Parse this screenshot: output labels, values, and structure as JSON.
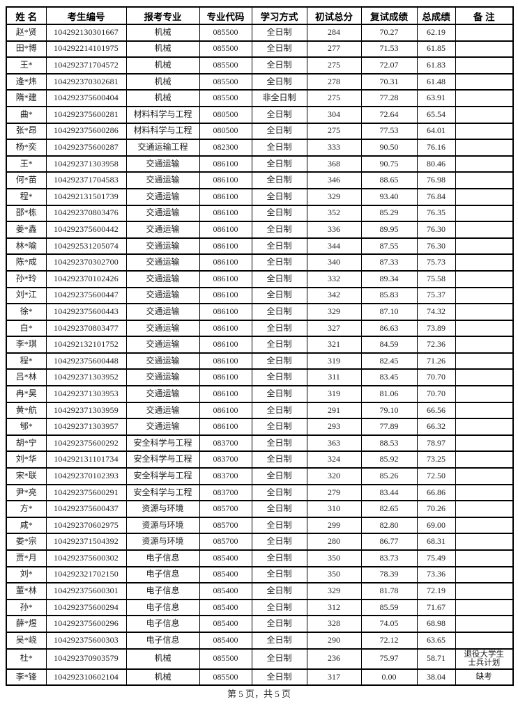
{
  "page": {
    "footer": "第 5 页，共 5 页"
  },
  "colors": {
    "border": "#000000",
    "text": "#1d1d1d",
    "background": "#ffffff"
  },
  "table": {
    "headers": [
      "姓 名",
      "考生编号",
      "报考专业",
      "专业代码",
      "学习方式",
      "初试总分",
      "复试成绩",
      "总成绩",
      "备 注"
    ],
    "column_keys": [
      "name",
      "candidate-id",
      "major",
      "major-code",
      "study-mode",
      "initial-score",
      "retest-score",
      "total-score",
      "remark"
    ],
    "rows": [
      [
        "赵*贤",
        "104292130301667",
        "机械",
        "085500",
        "全日制",
        "284",
        "70.27",
        "62.19",
        ""
      ],
      [
        "田*博",
        "104292214101975",
        "机械",
        "085500",
        "全日制",
        "277",
        "71.53",
        "61.85",
        ""
      ],
      [
        "王*",
        "104292371704572",
        "机械",
        "085500",
        "全日制",
        "275",
        "72.07",
        "61.83",
        ""
      ],
      [
        "逄*炜",
        "104292370302681",
        "机械",
        "085500",
        "全日制",
        "278",
        "70.31",
        "61.48",
        ""
      ],
      [
        "隋*建",
        "104292375600404",
        "机械",
        "085500",
        "非全日制",
        "275",
        "77.28",
        "63.91",
        ""
      ],
      [
        "曲*",
        "104292375600281",
        "材料科学与工程",
        "080500",
        "全日制",
        "304",
        "72.64",
        "65.54",
        ""
      ],
      [
        "张*昂",
        "104292375600286",
        "材料科学与工程",
        "080500",
        "全日制",
        "275",
        "77.53",
        "64.01",
        ""
      ],
      [
        "杨*奕",
        "104292375600287",
        "交通运输工程",
        "082300",
        "全日制",
        "333",
        "90.50",
        "76.16",
        ""
      ],
      [
        "王*",
        "104292371303958",
        "交通运输",
        "086100",
        "全日制",
        "368",
        "90.75",
        "80.46",
        ""
      ],
      [
        "何*苗",
        "104292371704583",
        "交通运输",
        "086100",
        "全日制",
        "346",
        "88.65",
        "76.98",
        ""
      ],
      [
        "程*",
        "104292131501739",
        "交通运输",
        "086100",
        "全日制",
        "329",
        "93.40",
        "76.84",
        ""
      ],
      [
        "邵*栋",
        "104292370803476",
        "交通运输",
        "086100",
        "全日制",
        "352",
        "85.29",
        "76.35",
        ""
      ],
      [
        "姜*鑫",
        "104292375600442",
        "交通运输",
        "086100",
        "全日制",
        "336",
        "89.95",
        "76.30",
        ""
      ],
      [
        "林*喻",
        "104292531205074",
        "交通运输",
        "086100",
        "全日制",
        "344",
        "87.55",
        "76.30",
        ""
      ],
      [
        "陈*成",
        "104292370302700",
        "交通运输",
        "086100",
        "全日制",
        "340",
        "87.33",
        "75.73",
        ""
      ],
      [
        "孙*玲",
        "104292370102426",
        "交通运输",
        "086100",
        "全日制",
        "332",
        "89.34",
        "75.58",
        ""
      ],
      [
        "刘*江",
        "104292375600447",
        "交通运输",
        "086100",
        "全日制",
        "342",
        "85.83",
        "75.37",
        ""
      ],
      [
        "徐*",
        "104292375600443",
        "交通运输",
        "086100",
        "全日制",
        "329",
        "87.10",
        "74.32",
        ""
      ],
      [
        "白*",
        "104292370803477",
        "交通运输",
        "086100",
        "全日制",
        "327",
        "86.63",
        "73.89",
        ""
      ],
      [
        "李*琪",
        "104292132101752",
        "交通运输",
        "086100",
        "全日制",
        "321",
        "84.59",
        "72.36",
        ""
      ],
      [
        "程*",
        "104292375600448",
        "交通运输",
        "086100",
        "全日制",
        "319",
        "82.45",
        "71.26",
        ""
      ],
      [
        "吕*林",
        "104292371303952",
        "交通运输",
        "086100",
        "全日制",
        "311",
        "83.45",
        "70.70",
        ""
      ],
      [
        "冉*昊",
        "104292371303953",
        "交通运输",
        "086100",
        "全日制",
        "319",
        "81.06",
        "70.70",
        ""
      ],
      [
        "黄*航",
        "104292371303959",
        "交通运输",
        "086100",
        "全日制",
        "291",
        "79.10",
        "66.56",
        ""
      ],
      [
        "郇*",
        "104292371303957",
        "交通运输",
        "086100",
        "全日制",
        "293",
        "77.89",
        "66.32",
        ""
      ],
      [
        "胡*宁",
        "104292375600292",
        "安全科学与工程",
        "083700",
        "全日制",
        "363",
        "88.53",
        "78.97",
        ""
      ],
      [
        "刘*华",
        "104292131101734",
        "安全科学与工程",
        "083700",
        "全日制",
        "324",
        "85.92",
        "73.25",
        ""
      ],
      [
        "宋*联",
        "104292370102393",
        "安全科学与工程",
        "083700",
        "全日制",
        "320",
        "85.26",
        "72.50",
        ""
      ],
      [
        "尹*亮",
        "104292375600291",
        "安全科学与工程",
        "083700",
        "全日制",
        "279",
        "83.44",
        "66.86",
        ""
      ],
      [
        "方*",
        "104292375600437",
        "资源与环境",
        "085700",
        "全日制",
        "310",
        "82.65",
        "70.26",
        ""
      ],
      [
        "咸*",
        "104292370602975",
        "资源与环境",
        "085700",
        "全日制",
        "299",
        "82.80",
        "69.00",
        ""
      ],
      [
        "娄*宗",
        "104292371504392",
        "资源与环境",
        "085700",
        "全日制",
        "280",
        "86.77",
        "68.31",
        ""
      ],
      [
        "贾*月",
        "104292375600302",
        "电子信息",
        "085400",
        "全日制",
        "350",
        "83.73",
        "75.49",
        ""
      ],
      [
        "刘*",
        "104292321702150",
        "电子信息",
        "085400",
        "全日制",
        "350",
        "78.39",
        "73.36",
        ""
      ],
      [
        "董*林",
        "104292375600301",
        "电子信息",
        "085400",
        "全日制",
        "329",
        "81.78",
        "72.19",
        ""
      ],
      [
        "孙*",
        "104292375600294",
        "电子信息",
        "085400",
        "全日制",
        "312",
        "85.59",
        "71.67",
        ""
      ],
      [
        "薛*煜",
        "104292375600296",
        "电子信息",
        "085400",
        "全日制",
        "328",
        "74.05",
        "68.98",
        ""
      ],
      [
        "吴*峣",
        "104292375600303",
        "电子信息",
        "085400",
        "全日制",
        "290",
        "72.12",
        "63.65",
        ""
      ],
      [
        "杜*",
        "104292370903579",
        "机械",
        "085500",
        "全日制",
        "236",
        "75.97",
        "58.71",
        "退役大学生\n士兵计划"
      ],
      [
        "李*锋",
        "104292310602104",
        "机械",
        "085500",
        "全日制",
        "317",
        "0.00",
        "38.04",
        "缺考"
      ]
    ]
  }
}
